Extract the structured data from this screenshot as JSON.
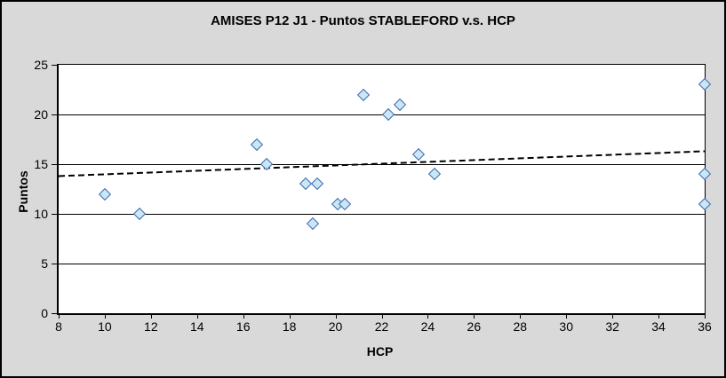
{
  "window": {
    "title": "AMISES P12 J1 - Puntos STABLEFORD v.s. HCP"
  },
  "chart_data": {
    "type": "scatter",
    "title": "AMISES P12 J1 - Puntos STABLEFORD v.s. HCP",
    "xlabel": "HCP",
    "ylabel": "Puntos",
    "xlim": [
      8,
      36
    ],
    "ylim": [
      0,
      25
    ],
    "x_ticks": [
      8,
      10,
      12,
      14,
      16,
      18,
      20,
      22,
      24,
      26,
      28,
      30,
      32,
      34,
      36
    ],
    "y_ticks": [
      0,
      5,
      10,
      15,
      20,
      25
    ],
    "grid": "horizontal-only",
    "legend": "none",
    "series": [
      {
        "name": "Puntos STABLEFORD",
        "marker": "diamond",
        "points": [
          {
            "x": 10,
            "y": 12
          },
          {
            "x": 11.5,
            "y": 10
          },
          {
            "x": 16.6,
            "y": 17
          },
          {
            "x": 17,
            "y": 15
          },
          {
            "x": 18.7,
            "y": 13
          },
          {
            "x": 19,
            "y": 9
          },
          {
            "x": 19.2,
            "y": 13
          },
          {
            "x": 20.1,
            "y": 11
          },
          {
            "x": 20.4,
            "y": 11
          },
          {
            "x": 21.2,
            "y": 22
          },
          {
            "x": 22.3,
            "y": 20
          },
          {
            "x": 22.8,
            "y": 21
          },
          {
            "x": 23.6,
            "y": 16
          },
          {
            "x": 24.3,
            "y": 14
          },
          {
            "x": 36,
            "y": 23
          },
          {
            "x": 36,
            "y": 14
          },
          {
            "x": 36,
            "y": 11
          }
        ]
      }
    ],
    "trendline": {
      "style": "dashed",
      "x1": 8,
      "y1": 13.8,
      "x2": 36,
      "y2": 16.3
    },
    "colors": {
      "chart_background": "#D9D9D9",
      "plot_background": "#FFFFFF",
      "marker_fill": "#C9E7F5",
      "marker_border": "#4169B0",
      "gridline": "#000000",
      "trendline": "#000000",
      "text": "#000000"
    }
  }
}
